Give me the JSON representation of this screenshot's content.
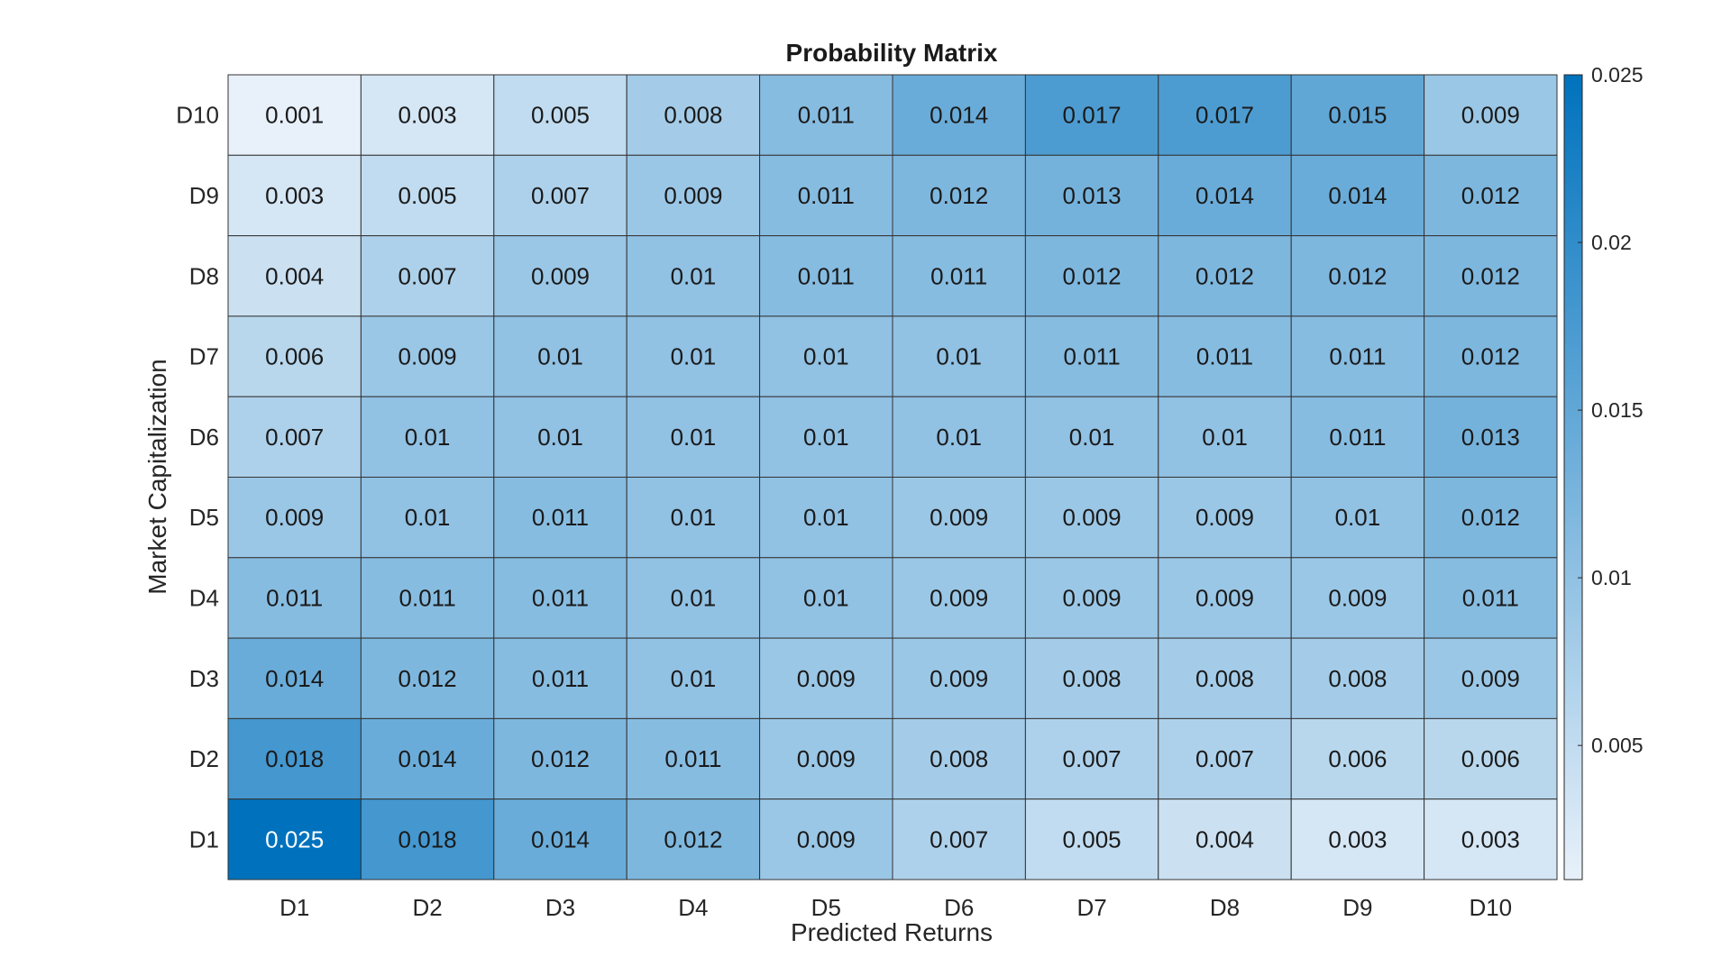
{
  "chart_data": {
    "type": "heatmap",
    "title": "Probability Matrix",
    "xlabel": "Predicted Returns",
    "ylabel": "Market Capitalization",
    "x_categories": [
      "D1",
      "D2",
      "D3",
      "D4",
      "D5",
      "D6",
      "D7",
      "D8",
      "D9",
      "D10"
    ],
    "y_categories": [
      "D10",
      "D9",
      "D8",
      "D7",
      "D6",
      "D5",
      "D4",
      "D3",
      "D2",
      "D1"
    ],
    "values": [
      [
        "0.001",
        "0.003",
        "0.005",
        "0.008",
        "0.011",
        "0.014",
        "0.017",
        "0.017",
        "0.015",
        "0.009"
      ],
      [
        "0.003",
        "0.005",
        "0.007",
        "0.009",
        "0.011",
        "0.012",
        "0.013",
        "0.014",
        "0.014",
        "0.012"
      ],
      [
        "0.004",
        "0.007",
        "0.009",
        "0.01",
        "0.011",
        "0.011",
        "0.012",
        "0.012",
        "0.012",
        "0.012"
      ],
      [
        "0.006",
        "0.009",
        "0.01",
        "0.01",
        "0.01",
        "0.01",
        "0.011",
        "0.011",
        "0.011",
        "0.012"
      ],
      [
        "0.007",
        "0.01",
        "0.01",
        "0.01",
        "0.01",
        "0.01",
        "0.01",
        "0.01",
        "0.011",
        "0.013"
      ],
      [
        "0.009",
        "0.01",
        "0.011",
        "0.01",
        "0.01",
        "0.009",
        "0.009",
        "0.009",
        "0.01",
        "0.012"
      ],
      [
        "0.011",
        "0.011",
        "0.011",
        "0.01",
        "0.01",
        "0.009",
        "0.009",
        "0.009",
        "0.009",
        "0.011"
      ],
      [
        "0.014",
        "0.012",
        "0.011",
        "0.01",
        "0.009",
        "0.009",
        "0.008",
        "0.008",
        "0.008",
        "0.009"
      ],
      [
        "0.018",
        "0.014",
        "0.012",
        "0.011",
        "0.009",
        "0.008",
        "0.007",
        "0.007",
        "0.006",
        "0.006"
      ],
      [
        "0.025",
        "0.018",
        "0.014",
        "0.012",
        "0.009",
        "0.007",
        "0.005",
        "0.004",
        "0.003",
        "0.003"
      ]
    ],
    "colorbar": {
      "range": [
        0.001,
        0.025
      ],
      "ticks": [
        0.005,
        0.01,
        0.015,
        0.02,
        0.025
      ],
      "tick_labels": [
        "0.005",
        "0.01",
        "0.015",
        "0.02",
        "0.025"
      ],
      "color_low": "#e8f1fa",
      "color_high": "#0072bd"
    },
    "grid": true,
    "legend": "colorbar-right"
  }
}
